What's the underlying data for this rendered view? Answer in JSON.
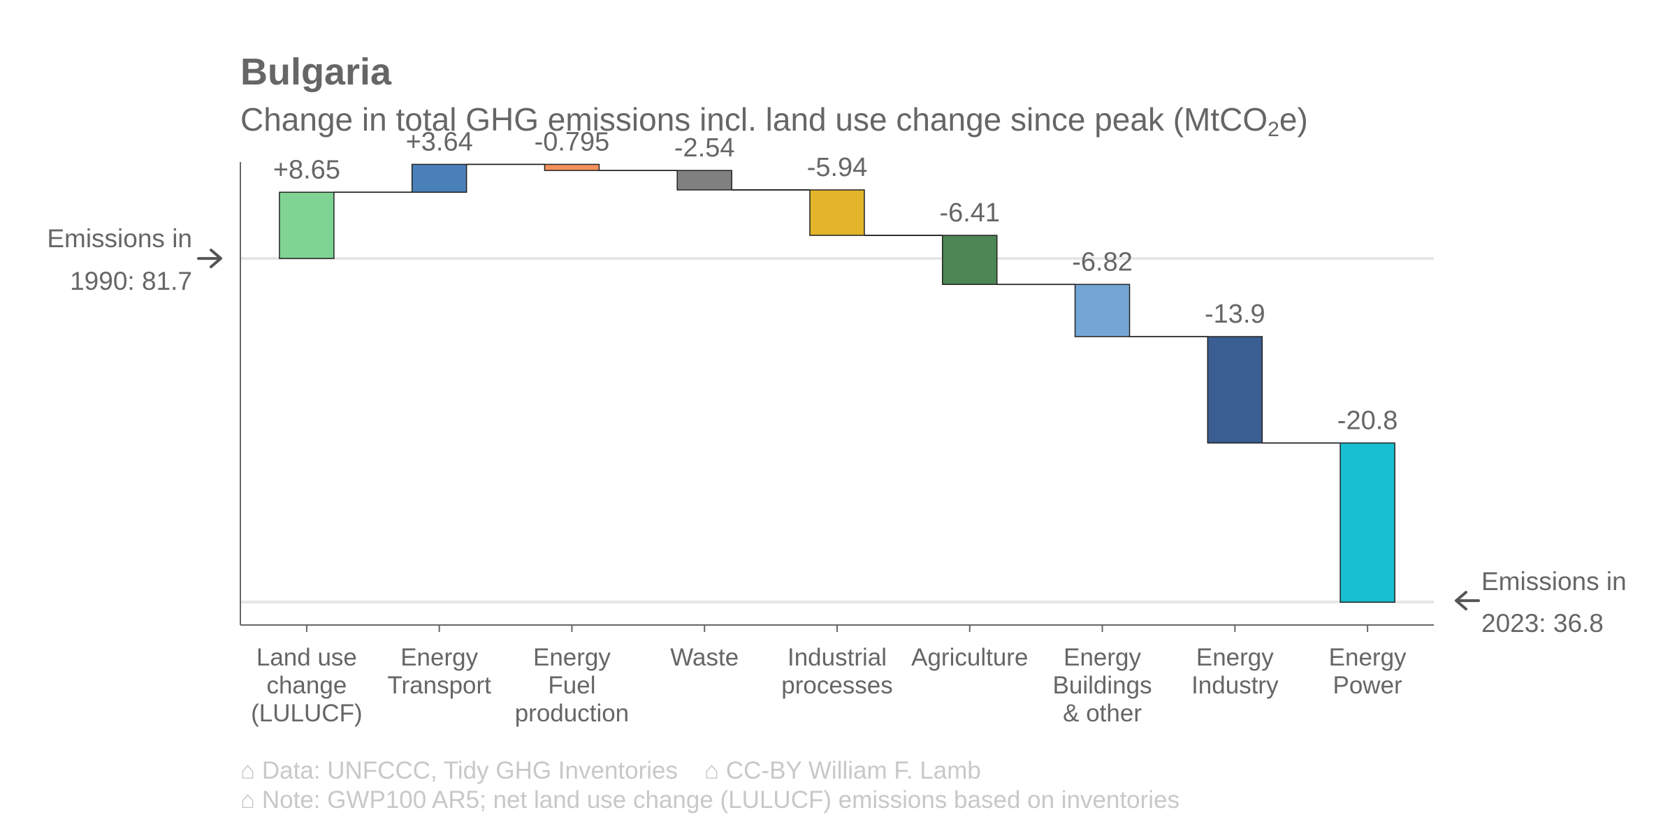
{
  "title": "Bulgaria",
  "subtitle": {
    "prefix": "Change in total GHG emissions incl. land use change since peak (MtCO",
    "subscript": "2",
    "suffix": "e)"
  },
  "chart_data": {
    "type": "waterfall",
    "start": {
      "label_line1": "Emissions in",
      "label_line2": "1990: 81.7",
      "value": 81.7
    },
    "end": {
      "label_line1": "Emissions in",
      "label_line2": "2023: 36.8",
      "value": 36.8
    },
    "categories": [
      {
        "label": [
          "Land use",
          "change",
          "(LULUCF)"
        ],
        "value": 8.65,
        "value_label": "+8.65",
        "color": "#7fd494"
      },
      {
        "label": [
          "Energy",
          "Transport"
        ],
        "value": 3.64,
        "value_label": "+3.64",
        "color": "#4a81b8"
      },
      {
        "label": [
          "Energy",
          "Fuel",
          "production"
        ],
        "value": -0.795,
        "value_label": "-0.795",
        "color": "#f5915a"
      },
      {
        "label": [
          "Waste"
        ],
        "value": -2.54,
        "value_label": "-2.54",
        "color": "#808080"
      },
      {
        "label": [
          "Industrial",
          "processes"
        ],
        "value": -5.94,
        "value_label": "-5.94",
        "color": "#e3b52b"
      },
      {
        "label": [
          "Agriculture"
        ],
        "value": -6.41,
        "value_label": "-6.41",
        "color": "#4e8555"
      },
      {
        "label": [
          "Energy",
          "Buildings",
          "& other"
        ],
        "value": -6.82,
        "value_label": "-6.82",
        "color": "#73a6d5"
      },
      {
        "label": [
          "Energy",
          "Industry"
        ],
        "value": -13.9,
        "value_label": "-13.9",
        "color": "#3a5e92"
      },
      {
        "label": [
          "Energy",
          "Power"
        ],
        "value": -20.8,
        "value_label": "-20.8",
        "color": "#17bfd1"
      }
    ],
    "ylim": [
      33.8,
      94.3
    ],
    "grid": "reference lines at start and end values",
    "connector_color": "#222222",
    "axis_color": "#666666",
    "gridline_color": "#e5e5e5"
  },
  "footer": {
    "data_source": "⌂ Data: UNFCCC, Tidy GHG Inventories",
    "license": "⌂ CC-BY William F. Lamb",
    "note": "⌂ Note: GWP100 AR5; net land use change (LULUCF) emissions based on inventories"
  }
}
